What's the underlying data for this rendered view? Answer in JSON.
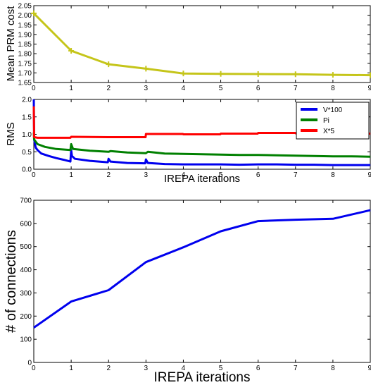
{
  "chart_data": [
    {
      "type": "line",
      "title": "",
      "xlabel": "",
      "ylabel": "Mean PRM cost",
      "xlim": [
        0,
        9
      ],
      "ylim": [
        1.65,
        2.05
      ],
      "x_ticks": [
        "0",
        "1",
        "2",
        "3",
        "4",
        "5",
        "6",
        "7",
        "8",
        "9"
      ],
      "y_ticks": [
        "1.65",
        "1.70",
        "1.75",
        "1.80",
        "1.85",
        "1.90",
        "1.95",
        "2.00",
        "2.05"
      ],
      "grid": false,
      "color": "#c5c51a",
      "markers": true,
      "series": [
        {
          "x": [
            0,
            1,
            2,
            3,
            4,
            5,
            6,
            7,
            8,
            9
          ],
          "values": [
            2.01,
            1.815,
            1.745,
            1.722,
            1.697,
            1.695,
            1.694,
            1.693,
            1.69,
            1.688
          ]
        }
      ]
    },
    {
      "type": "line",
      "title": "",
      "xlabel": "IREPA iterations",
      "ylabel": "RMS",
      "xlim": [
        0,
        9
      ],
      "ylim": [
        0,
        2.0
      ],
      "x_ticks": [
        "0",
        "1",
        "2",
        "3",
        "4",
        "5",
        "6",
        "7",
        "8",
        "9"
      ],
      "y_ticks": [
        "0.0",
        "0.5",
        "1.0",
        "1.5",
        "2.0"
      ],
      "grid": false,
      "legend": "top-right",
      "series": [
        {
          "name": "V*100",
          "color": "#0000ee",
          "x": [
            0,
            0.01,
            0.05,
            0.1,
            0.2,
            0.4,
            0.6,
            0.8,
            0.98,
            1.0,
            1.02,
            1.1,
            1.5,
            1.98,
            2.0,
            2.05,
            2.5,
            2.98,
            3.0,
            3.05,
            3.5,
            4,
            4.5,
            5,
            5.5,
            6,
            6.5,
            7,
            7.5,
            8,
            8.5,
            9
          ],
          "values": [
            2.0,
            0.85,
            0.62,
            0.55,
            0.45,
            0.38,
            0.32,
            0.27,
            0.22,
            0.55,
            0.38,
            0.3,
            0.24,
            0.2,
            0.3,
            0.22,
            0.18,
            0.17,
            0.28,
            0.18,
            0.15,
            0.14,
            0.14,
            0.14,
            0.13,
            0.14,
            0.14,
            0.13,
            0.13,
            0.12,
            0.12,
            0.12
          ]
        },
        {
          "name": "Pi",
          "color": "#008000",
          "x": [
            0,
            0.01,
            0.1,
            0.3,
            0.6,
            0.98,
            1.0,
            1.05,
            1.5,
            2.0,
            2.05,
            2.5,
            3.0,
            3.05,
            3.5,
            4,
            4.5,
            5,
            5.5,
            6,
            6.5,
            7,
            7.5,
            8,
            8.5,
            9
          ],
          "values": [
            1.05,
            0.85,
            0.72,
            0.64,
            0.58,
            0.55,
            0.72,
            0.58,
            0.53,
            0.5,
            0.52,
            0.48,
            0.46,
            0.5,
            0.45,
            0.44,
            0.43,
            0.42,
            0.41,
            0.41,
            0.4,
            0.39,
            0.38,
            0.37,
            0.37,
            0.36
          ]
        },
        {
          "name": "X*5",
          "color": "#ff0000",
          "x": [
            0,
            0.01,
            0.1,
            0.98,
            1.0,
            1.99,
            2.0,
            2.99,
            3.0,
            3.99,
            4.0,
            4.99,
            5.0,
            5.99,
            6.0,
            6.99,
            7.0,
            7.99,
            8.0,
            9
          ],
          "values": [
            1.8,
            0.92,
            0.9,
            0.9,
            0.93,
            0.92,
            0.92,
            0.92,
            1.01,
            1.01,
            1.0,
            1.0,
            1.02,
            1.02,
            1.04,
            1.04,
            1.03,
            1.03,
            1.02,
            1.02
          ]
        }
      ]
    },
    {
      "type": "line",
      "title": "",
      "xlabel": "IREPA iterations",
      "ylabel": "# of connections",
      "xlim": [
        0,
        9
      ],
      "ylim": [
        0,
        700
      ],
      "x_ticks": [
        "0",
        "1",
        "2",
        "3",
        "4",
        "5",
        "6",
        "7",
        "8",
        "9"
      ],
      "y_ticks": [
        "0",
        "100",
        "200",
        "300",
        "400",
        "500",
        "600",
        "700"
      ],
      "grid": false,
      "color": "#0000ee",
      "series": [
        {
          "x": [
            0,
            1,
            2,
            3,
            4,
            5,
            6,
            7,
            8,
            9
          ],
          "values": [
            150,
            263,
            312,
            433,
            497,
            566,
            610,
            616,
            620,
            657
          ]
        }
      ]
    }
  ]
}
